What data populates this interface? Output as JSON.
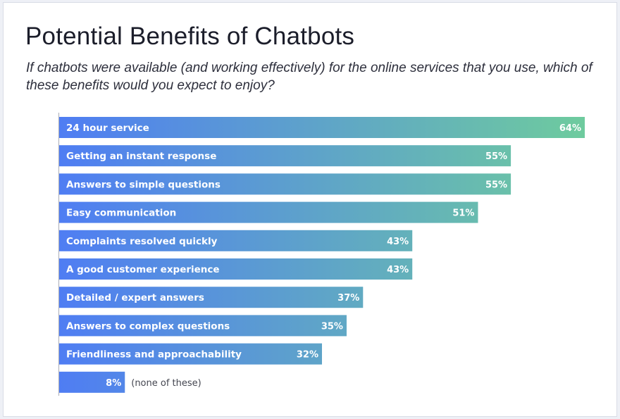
{
  "title": "Potential Benefits of Chatbots",
  "subtitle": "If chatbots were available (and working effectively) for the online services that you use, which of these benefits would you expect to enjoy?",
  "colors": {
    "bar_start": "#4f7df3",
    "bar_end": "#6ecb9e",
    "axis": "#a9acb6"
  },
  "chart_data": {
    "type": "bar",
    "orientation": "horizontal",
    "unit": "%",
    "categories": [
      "24 hour service",
      "Getting an instant response",
      "Answers to simple questions",
      "Easy communication",
      "Complaints resolved quickly",
      "A good customer experience",
      "Detailed / expert answers",
      "Answers to complex questions",
      "Friendliness and approachability",
      "(none of these)"
    ],
    "values": [
      64,
      55,
      55,
      51,
      43,
      43,
      37,
      35,
      32,
      8
    ],
    "value_labels": [
      "64%",
      "55%",
      "55%",
      "51%",
      "43%",
      "43%",
      "37%",
      "35%",
      "32%",
      "8%"
    ],
    "xlim": [
      0,
      64
    ]
  }
}
